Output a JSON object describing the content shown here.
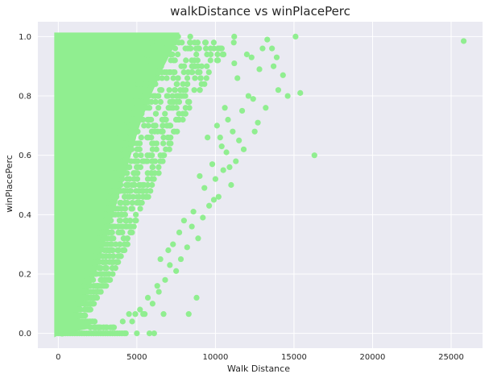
{
  "chart_data": {
    "type": "scatter",
    "title": "walkDistance vs winPlacePerc",
    "xlabel": "Walk Distance",
    "ylabel": "winPlacePerc",
    "xlim": [
      -1300,
      27000
    ],
    "ylim": [
      -0.05,
      1.05
    ],
    "x_ticks": [
      0,
      5000,
      10000,
      15000,
      20000,
      25000
    ],
    "x_tick_labels": [
      "0",
      "5000",
      "10000",
      "15000",
      "20000",
      "25000"
    ],
    "y_ticks": [
      0.0,
      0.2,
      0.4,
      0.6,
      0.8,
      1.0
    ],
    "y_tick_labels": [
      "0.0",
      "0.2",
      "0.4",
      "0.6",
      "0.8",
      "1.0"
    ],
    "grid": true,
    "style": "seaborn-darkgrid",
    "colors": {
      "plot_background": "#eaeaf2",
      "grid": "#ffffff",
      "point": "#90ee90"
    },
    "series": [
      {
        "name": "walkDistance vs winPlacePerc",
        "density_profile": {
          "description": "dense band from 0 m; upper edge of walk distance rises with winPlacePerc",
          "walk_distance_upper_edge": [
            [
              0.0,
              300
            ],
            [
              0.01,
              4300
            ],
            [
              0.05,
              1600
            ],
            [
              0.1,
              2200
            ],
            [
              0.15,
              2800
            ],
            [
              0.2,
              3400
            ],
            [
              0.3,
              4200
            ],
            [
              0.4,
              5000
            ],
            [
              0.5,
              5800
            ],
            [
              0.6,
              6600
            ],
            [
              0.7,
              7400
            ],
            [
              0.8,
              8400
            ],
            [
              0.9,
              9600
            ],
            [
              1.0,
              11000
            ]
          ]
        },
        "points": [
          [
            25800,
            0.985
          ],
          [
            16300,
            0.6
          ],
          [
            15400,
            0.81
          ],
          [
            15100,
            1.0
          ],
          [
            14600,
            0.8
          ],
          [
            14300,
            0.87
          ],
          [
            14000,
            0.82
          ],
          [
            13900,
            0.93
          ],
          [
            13700,
            0.9
          ],
          [
            13600,
            0.96
          ],
          [
            13300,
            0.99
          ],
          [
            13200,
            0.76
          ],
          [
            13000,
            0.96
          ],
          [
            12800,
            0.89
          ],
          [
            12700,
            0.71
          ],
          [
            12500,
            0.68
          ],
          [
            12400,
            0.79
          ],
          [
            12300,
            0.93
          ],
          [
            12100,
            0.8
          ],
          [
            12000,
            0.94
          ],
          [
            11800,
            0.62
          ],
          [
            11700,
            0.75
          ],
          [
            11500,
            0.65
          ],
          [
            11400,
            0.86
          ],
          [
            11300,
            0.58
          ],
          [
            11200,
            0.91
          ],
          [
            11100,
            0.68
          ],
          [
            11000,
            0.5
          ],
          [
            10900,
            0.56
          ],
          [
            10800,
            0.72
          ],
          [
            10700,
            0.61
          ],
          [
            10600,
            0.76
          ],
          [
            10500,
            0.55
          ],
          [
            10400,
            0.63
          ],
          [
            10300,
            0.66
          ],
          [
            10200,
            0.46
          ],
          [
            10100,
            0.7
          ],
          [
            10000,
            0.52
          ],
          [
            9900,
            0.45
          ],
          [
            9800,
            0.57
          ],
          [
            9600,
            0.43
          ],
          [
            9500,
            0.66
          ],
          [
            9300,
            0.49
          ],
          [
            9200,
            0.39
          ],
          [
            9000,
            0.53
          ],
          [
            8900,
            0.32
          ],
          [
            8800,
            0.12
          ],
          [
            8600,
            0.41
          ],
          [
            8500,
            0.36
          ],
          [
            8300,
            0.065
          ],
          [
            8200,
            0.29
          ],
          [
            8000,
            0.38
          ],
          [
            7800,
            0.25
          ],
          [
            7700,
            0.34
          ],
          [
            7500,
            0.21
          ],
          [
            7300,
            0.3
          ],
          [
            7100,
            0.23
          ],
          [
            7000,
            0.28
          ],
          [
            6800,
            0.18
          ],
          [
            6700,
            0.065
          ],
          [
            6500,
            0.25
          ],
          [
            6400,
            0.14
          ],
          [
            6300,
            0.16
          ],
          [
            6100,
            0.0
          ],
          [
            6000,
            0.1
          ],
          [
            5800,
            0.0
          ],
          [
            5700,
            0.12
          ],
          [
            5500,
            0.065
          ],
          [
            5400,
            0.065
          ],
          [
            5200,
            0.08
          ],
          [
            5000,
            0.0
          ],
          [
            4900,
            0.065
          ],
          [
            4700,
            0.04
          ],
          [
            4500,
            0.065
          ],
          [
            4300,
            0.0
          ],
          [
            4100,
            0.04
          ]
        ]
      }
    ]
  }
}
